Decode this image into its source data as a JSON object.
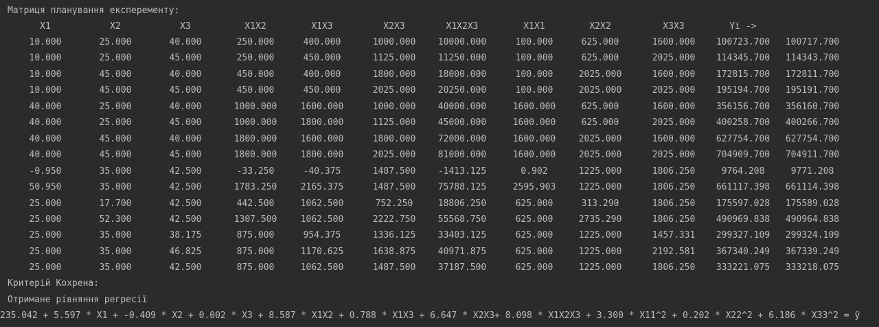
{
  "console": {
    "title": "Матриця планування експеременту:",
    "header": [
      "X1",
      "X2",
      "X3",
      "X1X2",
      "X1X3",
      "X2X3",
      "X1X2X3",
      "X1X1",
      "X2X2",
      "X3X3",
      "Yi ->"
    ],
    "rows": [
      [
        "10.000",
        "25.000",
        "40.000",
        "250.000",
        "400.000",
        "1000.000",
        "10000.000",
        "100.000",
        "625.000",
        "1600.000",
        "100723.700",
        "100717.700"
      ],
      [
        "10.000",
        "25.000",
        "45.000",
        "250.000",
        "450.000",
        "1125.000",
        "11250.000",
        "100.000",
        "625.000",
        "2025.000",
        "114345.700",
        "114343.700"
      ],
      [
        "10.000",
        "45.000",
        "40.000",
        "450.000",
        "400.000",
        "1800.000",
        "18000.000",
        "100.000",
        "2025.000",
        "1600.000",
        "172815.700",
        "172811.700"
      ],
      [
        "10.000",
        "45.000",
        "45.000",
        "450.000",
        "450.000",
        "2025.000",
        "20250.000",
        "100.000",
        "2025.000",
        "2025.000",
        "195194.700",
        "195191.700"
      ],
      [
        "40.000",
        "25.000",
        "40.000",
        "1000.000",
        "1600.000",
        "1000.000",
        "40000.000",
        "1600.000",
        "625.000",
        "1600.000",
        "356156.700",
        "356160.700"
      ],
      [
        "40.000",
        "25.000",
        "45.000",
        "1000.000",
        "1800.000",
        "1125.000",
        "45000.000",
        "1600.000",
        "625.000",
        "2025.000",
        "400258.700",
        "400266.700"
      ],
      [
        "40.000",
        "45.000",
        "40.000",
        "1800.000",
        "1600.000",
        "1800.000",
        "72000.000",
        "1600.000",
        "2025.000",
        "1600.000",
        "627754.700",
        "627754.700"
      ],
      [
        "40.000",
        "45.000",
        "45.000",
        "1800.000",
        "1800.000",
        "2025.000",
        "81000.000",
        "1600.000",
        "2025.000",
        "2025.000",
        "704909.700",
        "704911.700"
      ],
      [
        "-0.950",
        "35.000",
        "42.500",
        "-33.250",
        "-40.375",
        "1487.500",
        "-1413.125",
        "0.902",
        "1225.000",
        "1806.250",
        "9764.208",
        "9771.208"
      ],
      [
        "50.950",
        "35.000",
        "42.500",
        "1783.250",
        "2165.375",
        "1487.500",
        "75788.125",
        "2595.903",
        "1225.000",
        "1806.250",
        "661117.398",
        "661114.398"
      ],
      [
        "25.000",
        "17.700",
        "42.500",
        "442.500",
        "1062.500",
        "752.250",
        "18806.250",
        "625.000",
        "313.290",
        "1806.250",
        "175597.028",
        "175589.028"
      ],
      [
        "25.000",
        "52.300",
        "42.500",
        "1307.500",
        "1062.500",
        "2222.750",
        "55568.750",
        "625.000",
        "2735.290",
        "1806.250",
        "490969.838",
        "490964.838"
      ],
      [
        "25.000",
        "35.000",
        "38.175",
        "875.000",
        "954.375",
        "1336.125",
        "33403.125",
        "625.000",
        "1225.000",
        "1457.331",
        "299327.109",
        "299324.109"
      ],
      [
        "25.000",
        "35.000",
        "46.825",
        "875.000",
        "1170.625",
        "1638.875",
        "40971.875",
        "625.000",
        "1225.000",
        "2192.581",
        "367340.249",
        "367339.249"
      ],
      [
        "25.000",
        "35.000",
        "42.500",
        "875.000",
        "1062.500",
        "1487.500",
        "37187.500",
        "625.000",
        "1225.000",
        "1806.250",
        "333221.075",
        "333218.075"
      ]
    ],
    "cochran": "Критерій Кохрена:",
    "equation_title": "Отримане рівняння регресії",
    "equation": "235.042 + 5.597 * X1 + -0.409 * X2 + 0.002 * X3 + 8.587 * X1X2 + 0.788 * X1X3 + 6.647 * X2X3+ 8.098 * X1X2X3 + 3.300 * X11^2 + 0.202 * X22^2 + 6.186 * X33^2 = ŷ"
  }
}
